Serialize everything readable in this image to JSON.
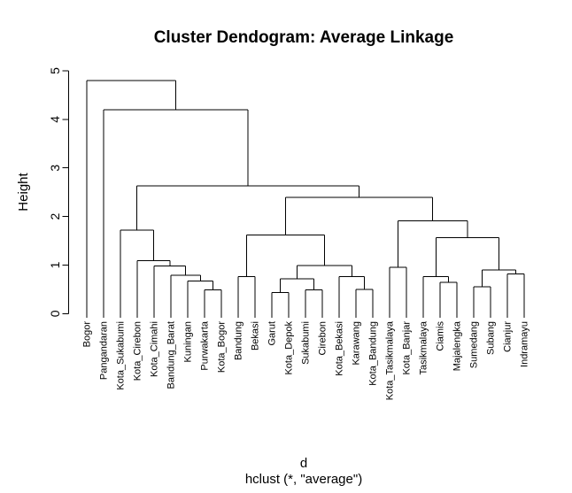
{
  "title": "Cluster Dendogram: Average Linkage",
  "colors": {
    "line": "#000000",
    "text": "#000000",
    "background": "#ffffff"
  },
  "chart_data": {
    "type": "dendrogram",
    "title": "Cluster Dendogram: Average Linkage",
    "ylabel": "Height",
    "xlabel": "d",
    "subtitle": "hclust (*, \"average\")",
    "linkage": "average",
    "ylim": [
      0,
      5
    ],
    "yticks": [
      0,
      1,
      2,
      3,
      4,
      5
    ],
    "grid": false,
    "leaves": [
      "Bogor",
      "Pangandaran",
      "Kota_Sukabumi",
      "Kota_Cirebon",
      "Kota_Cimahi",
      "Bandung_Barat",
      "Kuningan",
      "Purwakarta",
      "Kota_Bogor",
      "Bandung",
      "Bekasi",
      "Garut",
      "Kota_Depok",
      "Sukabumi",
      "Cirebon",
      "Kota_Bekasi",
      "Karawang",
      "Kota_Bandung",
      "Kota_Tasikmalaya",
      "Kota_Banjar",
      "Tasikmalaya",
      "Ciamis",
      "Majalengka",
      "Sumedang",
      "Subang",
      "Cianjur",
      "Indramayu"
    ],
    "tree": {
      "h": 4.8,
      "c": [
        "Bogor",
        {
          "h": 4.2,
          "c": [
            "Pangandaran",
            {
              "h": 2.63,
              "c": [
                {
                  "h": 1.72,
                  "c": [
                    "Kota_Sukabumi",
                    {
                      "h": 1.09,
                      "c": [
                        "Kota_Cirebon",
                        {
                          "h": 0.98,
                          "c": [
                            "Kota_Cimahi",
                            {
                              "h": 0.79,
                              "c": [
                                "Bandung_Barat",
                                {
                                  "h": 0.67,
                                  "c": [
                                    "Kuningan",
                                    {
                                      "h": 0.49,
                                      "c": [
                                        "Purwakarta",
                                        "Kota_Bogor"
                                      ]
                                    }
                                  ]
                                }
                              ]
                            }
                          ]
                        }
                      ]
                    }
                  ]
                },
                {
                  "h": 2.39,
                  "c": [
                    {
                      "h": 1.62,
                      "c": [
                        {
                          "h": 0.76,
                          "c": [
                            "Bandung",
                            "Bekasi"
                          ]
                        },
                        {
                          "h": 0.99,
                          "c": [
                            {
                              "h": 0.72,
                              "c": [
                                {
                                  "h": 0.43,
                                  "c": [
                                    "Garut",
                                    "Kota_Depok"
                                  ]
                                },
                                {
                                  "h": 0.49,
                                  "c": [
                                    "Sukabumi",
                                    "Cirebon"
                                  ]
                                }
                              ]
                            },
                            {
                              "h": 0.76,
                              "c": [
                                "Kota_Bekasi",
                                {
                                  "h": 0.5,
                                  "c": [
                                    "Karawang",
                                    "Kota_Bandung"
                                  ]
                                }
                              ]
                            }
                          ]
                        }
                      ]
                    },
                    {
                      "h": 1.91,
                      "c": [
                        {
                          "h": 0.95,
                          "c": [
                            "Kota_Tasikmalaya",
                            "Kota_Banjar"
                          ]
                        },
                        {
                          "h": 1.56,
                          "c": [
                            {
                              "h": 0.76,
                              "c": [
                                "Tasikmalaya",
                                {
                                  "h": 0.64,
                                  "c": [
                                    "Ciamis",
                                    "Majalengka"
                                  ]
                                }
                              ]
                            },
                            {
                              "h": 0.9,
                              "c": [
                                {
                                  "h": 0.55,
                                  "c": [
                                    "Sumedang",
                                    "Subang"
                                  ]
                                },
                                {
                                  "h": 0.82,
                                  "c": [
                                    "Cianjur",
                                    "Indramayu"
                                  ]
                                }
                              ]
                            }
                          ]
                        }
                      ]
                    }
                  ]
                }
              ]
            }
          ]
        }
      ]
    }
  }
}
